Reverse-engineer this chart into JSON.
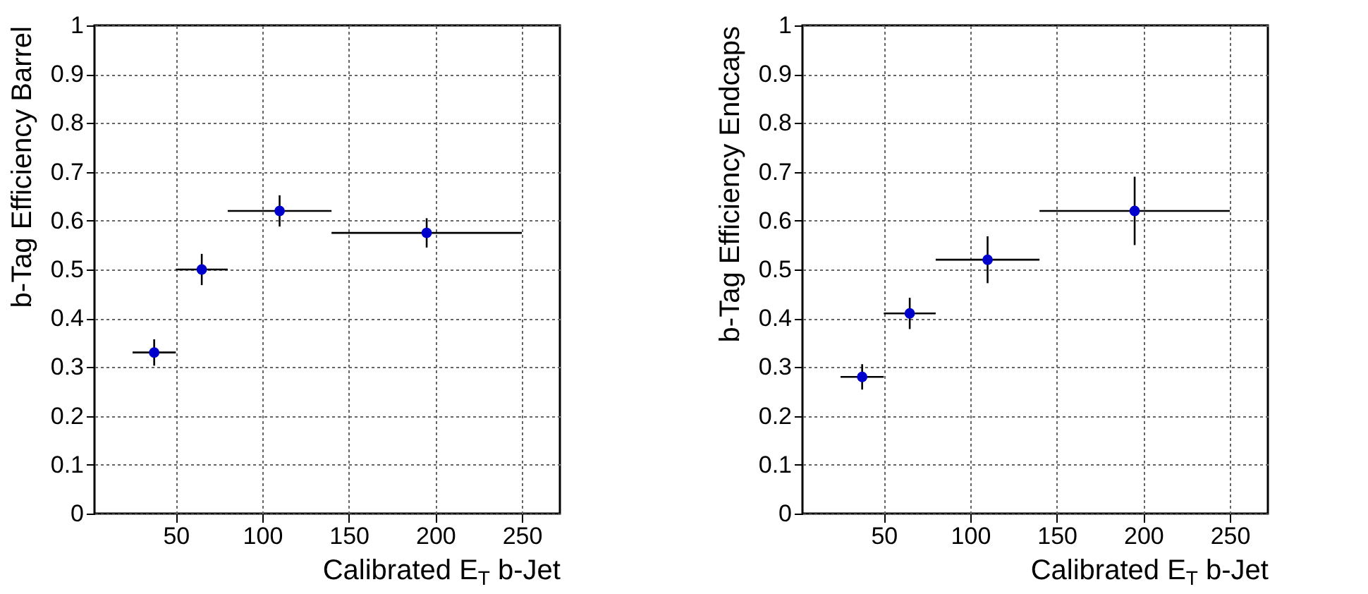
{
  "chart_data": [
    {
      "type": "scatter",
      "xlabel": "Calibrated E$_{T}$ b-Jet",
      "ylabel": "b-Tag Efficiency Barrel",
      "x": [
        37.5,
        65,
        110,
        195
      ],
      "series": [
        {
          "color": "#0000cc",
          "values": [
            0.33,
            0.5,
            0.62,
            0.575
          ],
          "errors": [
            0.027,
            0.032,
            0.032,
            0.03
          ],
          "xerrors": [
            [
              25,
              50
            ],
            [
              50,
              80
            ],
            [
              80,
              140
            ],
            [
              140,
              250
            ]
          ]
        }
      ],
      "xlim": [
        3,
        272
      ],
      "xticks": [
        50,
        100,
        150,
        200,
        250
      ],
      "ylim": [
        0,
        1
      ],
      "yticks": [
        0,
        0.1,
        0.2,
        0.3,
        0.4,
        0.5,
        0.6,
        0.7,
        0.8,
        0.9,
        1
      ],
      "grid": true,
      "marker": "circle"
    },
    {
      "type": "scatter",
      "xlabel": "Calibrated E$_{T}$ b-Jet",
      "ylabel": "b-Tag Efficiency Endcaps",
      "x": [
        37.5,
        65,
        110,
        195
      ],
      "series": [
        {
          "color": "#0000cc",
          "values": [
            0.28,
            0.41,
            0.52,
            0.62
          ],
          "errors": [
            0.026,
            0.032,
            0.048,
            0.07
          ],
          "xerrors": [
            [
              25,
              50
            ],
            [
              50,
              80
            ],
            [
              80,
              140
            ],
            [
              140,
              250
            ]
          ]
        }
      ],
      "xlim": [
        3,
        272
      ],
      "xticks": [
        50,
        100,
        150,
        200,
        250
      ],
      "ylim": [
        0,
        1
      ],
      "yticks": [
        0,
        0.1,
        0.2,
        0.3,
        0.4,
        0.5,
        0.6,
        0.7,
        0.8,
        0.9,
        1
      ],
      "grid": true,
      "marker": "circle"
    }
  ]
}
